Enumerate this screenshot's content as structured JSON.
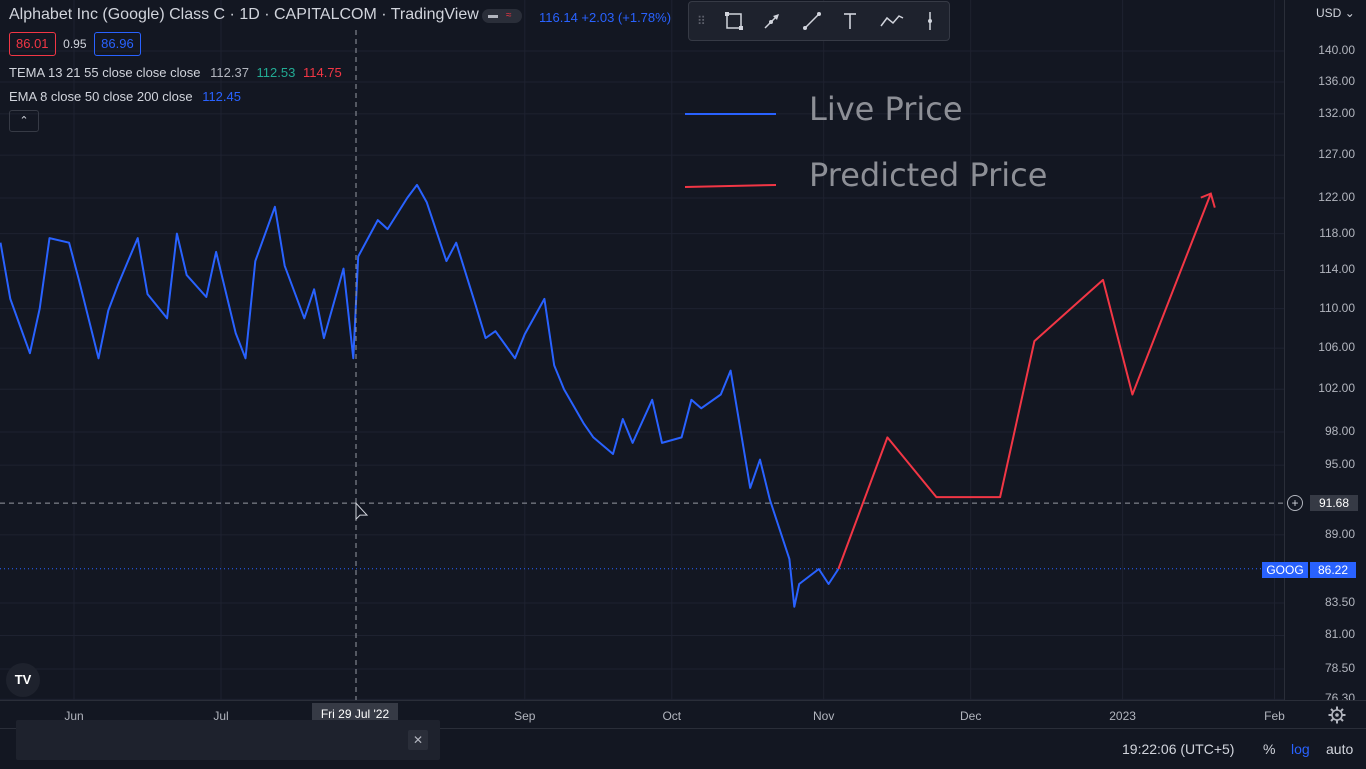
{
  "header": {
    "title": "Alphabet Inc (Google) Class C · 1D · CAPITALCOM · TradingView",
    "change": "116.14 +2.03 (+1.78%)",
    "bid": "86.01",
    "spread": "0.95",
    "ask": "86.96"
  },
  "indicators": {
    "tema_label": "TEMA 13 21 55 close close close",
    "tema_v1": "112.37",
    "tema_v2": "112.53",
    "tema_v3": "114.75",
    "ema_label": "EMA 8 close 50 close 200 close",
    "ema_v1": "112.45"
  },
  "legend_overlay": {
    "live": "Live Price",
    "predicted": "Predicted Price",
    "live_color": "#2962ff",
    "predicted_color": "#f23645"
  },
  "toolbar": {
    "icons": [
      "rectangle-icon",
      "arrow-icon",
      "trend-line-icon",
      "text-icon",
      "path-icon",
      "vertical-line-icon"
    ]
  },
  "axis": {
    "currency": "USD",
    "y_labels": [
      "140.00",
      "136.00",
      "132.00",
      "127.00",
      "122.00",
      "118.00",
      "114.00",
      "110.00",
      "106.00",
      "102.00",
      "98.00",
      "95.00",
      "89.00",
      "83.50",
      "81.00",
      "78.50",
      "76.30"
    ],
    "x_labels": [
      "Jun",
      "Jul",
      "Sep",
      "Oct",
      "Nov",
      "Dec",
      "2023",
      "Feb"
    ],
    "crosshair_date": "Fri 29 Jul '22",
    "crosshair_price": "91.68",
    "symbol": "GOOG",
    "last_price": "86.22"
  },
  "chart_data": {
    "type": "line",
    "log_scale": true,
    "series": [
      {
        "name": "Live Price",
        "color": "#2962ff",
        "x": [
          "2022-05-17",
          "2022-05-19",
          "2022-05-23",
          "2022-05-25",
          "2022-05-27",
          "2022-05-31",
          "2022-06-02",
          "2022-06-06",
          "2022-06-08",
          "2022-06-10",
          "2022-06-14",
          "2022-06-16",
          "2022-06-20",
          "2022-06-22",
          "2022-06-24",
          "2022-06-28",
          "2022-06-30",
          "2022-07-04",
          "2022-07-06",
          "2022-07-08",
          "2022-07-12",
          "2022-07-14",
          "2022-07-18",
          "2022-07-20",
          "2022-07-22",
          "2022-07-26",
          "2022-07-28",
          "2022-07-29",
          "2022-08-02",
          "2022-08-04",
          "2022-08-08",
          "2022-08-10",
          "2022-08-12",
          "2022-08-16",
          "2022-08-18",
          "2022-08-22",
          "2022-08-24",
          "2022-08-26",
          "2022-08-30",
          "2022-09-01",
          "2022-09-05",
          "2022-09-07",
          "2022-09-09",
          "2022-09-13",
          "2022-09-15",
          "2022-09-19",
          "2022-09-21",
          "2022-09-23",
          "2022-09-27",
          "2022-09-29",
          "2022-10-03",
          "2022-10-05",
          "2022-10-07",
          "2022-10-11",
          "2022-10-13",
          "2022-10-17",
          "2022-10-19",
          "2022-10-21",
          "2022-10-25",
          "2022-10-26",
          "2022-10-27",
          "2022-10-31",
          "2022-11-02",
          "2022-11-04"
        ],
        "values": [
          117.0,
          111.0,
          105.5,
          110.0,
          117.5,
          117.0,
          113.0,
          105.0,
          109.8,
          112.5,
          117.5,
          111.5,
          109.0,
          118.0,
          113.5,
          111.2,
          116.0,
          107.5,
          105.0,
          115.0,
          121.0,
          114.5,
          109.0,
          112.0,
          107.0,
          114.2,
          105.0,
          115.5,
          119.5,
          118.5,
          122.0,
          123.5,
          121.5,
          115.0,
          117.0,
          110.3,
          107.0,
          107.7,
          105.0,
          107.4,
          111.0,
          104.3,
          102.0,
          98.8,
          97.5,
          96.0,
          99.2,
          97.0,
          101.0,
          97.0,
          97.5,
          101.0,
          100.2,
          101.5,
          103.8,
          93.0,
          95.5,
          92.0,
          87.0,
          83.2,
          85.0,
          86.2,
          85.0,
          86.2
        ]
      },
      {
        "name": "Predicted Price",
        "color": "#f23645",
        "x": [
          "2022-11-04",
          "2022-11-14",
          "2022-11-24",
          "2022-12-07",
          "2022-12-14",
          "2022-12-28",
          "2023-01-03",
          "2023-01-19"
        ],
        "values": [
          86.2,
          97.5,
          92.2,
          92.2,
          106.7,
          113.0,
          101.5,
          122.5
        ]
      }
    ]
  }
}
